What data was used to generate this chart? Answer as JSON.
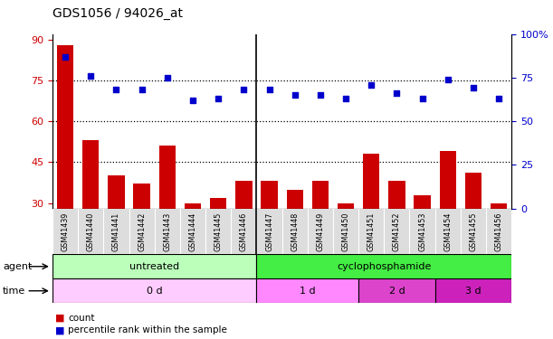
{
  "title": "GDS1056 / 94026_at",
  "samples": [
    "GSM41439",
    "GSM41440",
    "GSM41441",
    "GSM41442",
    "GSM41443",
    "GSM41444",
    "GSM41445",
    "GSM41446",
    "GSM41447",
    "GSM41448",
    "GSM41449",
    "GSM41450",
    "GSM41451",
    "GSM41452",
    "GSM41453",
    "GSM41454",
    "GSM41455",
    "GSM41456"
  ],
  "counts": [
    88,
    53,
    40,
    37,
    51,
    30,
    32,
    38,
    38,
    35,
    38,
    30,
    48,
    38,
    33,
    49,
    41,
    30
  ],
  "percentiles": [
    87,
    76,
    68,
    68,
    75,
    62,
    63,
    68,
    68,
    65,
    65,
    63,
    71,
    66,
    63,
    74,
    69,
    63
  ],
  "ylim_left": [
    28,
    92
  ],
  "ylim_right": [
    0,
    100
  ],
  "yticks_left": [
    30,
    45,
    60,
    75,
    90
  ],
  "yticks_right": [
    0,
    25,
    50,
    75,
    100
  ],
  "ytick_labels_right": [
    "0",
    "25",
    "50",
    "75",
    "100%"
  ],
  "hlines": [
    45,
    60,
    75
  ],
  "bar_color": "#cc0000",
  "dot_color": "#0000cc",
  "agent_untreated_color": "#bbffbb",
  "agent_cyclo_color": "#44ee44",
  "time_0d_color": "#ffccff",
  "time_1d_color": "#ff88ff",
  "time_2d_color": "#dd44cc",
  "time_3d_color": "#cc22bb",
  "tick_label_color_left": "#cc0000",
  "tick_label_color_right": "#0000cc",
  "legend_count_color": "#cc0000",
  "legend_pct_color": "#0000cc",
  "xticklabel_bg": "#dddddd",
  "n_untreated": 8,
  "n_1d": 4,
  "n_2d": 3,
  "n_3d": 3
}
